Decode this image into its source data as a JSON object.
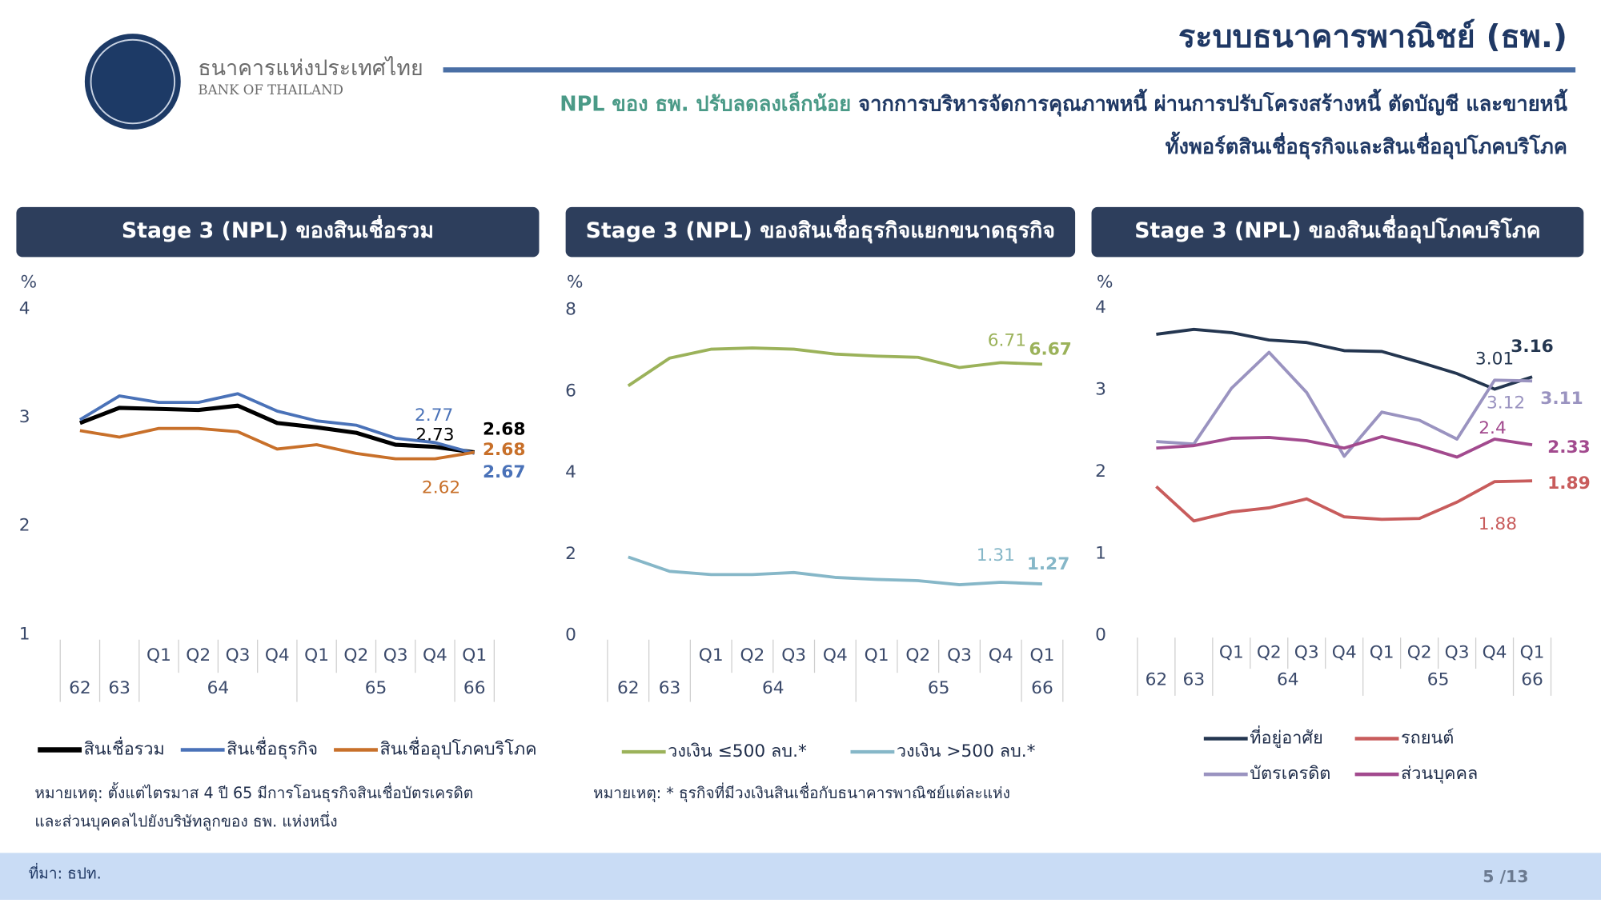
{
  "header": {
    "title": "ระบบธนาคารพาณิชย์ (ธพ.)",
    "subtitle_highlight": "NPL ของ ธพ. ปรับลดลงเล็กน้อย",
    "subtitle_rest": " จากการบริหารจัดการคุณภาพหนี้ ผ่านการปรับโครงสร้างหนี้ ตัดบัญชี และขายหนี้",
    "subtitle_line2": "ทั้งพอร์ตสินเชื่อธุรกิจและสินเชื่ออุปโภคบริโภค"
  },
  "logo": {
    "name_th": "ธนาคารแห่งประเทศไทย",
    "name_en": "BANK OF THAILAND"
  },
  "chart_data": [
    {
      "type": "line",
      "title": "Stage 3 (NPL) ของสินเชื่อรวม",
      "y_unit": "%",
      "categories": [
        null,
        null,
        "Q1",
        "Q2",
        "Q3",
        "Q4",
        "Q1",
        "Q2",
        "Q3",
        "Q4",
        "Q1"
      ],
      "category_groups": [
        {
          "label": "62",
          "count": 1
        },
        {
          "label": "63",
          "count": 1
        },
        {
          "label": "64",
          "count": 4
        },
        {
          "label": "65",
          "count": 4
        },
        {
          "label": "66",
          "count": 1
        }
      ],
      "ylim": [
        1,
        4
      ],
      "yticks": [
        1,
        2,
        3,
        4
      ],
      "series": [
        {
          "name": "สินเชื่อรวม",
          "color": "#000000",
          "values": [
            2.95,
            3.09,
            3.08,
            3.07,
            3.11,
            2.95,
            2.91,
            2.86,
            2.75,
            2.73,
            2.68
          ],
          "labeled_points": [
            9,
            10
          ]
        },
        {
          "name": "สินเชื่อธุรกิจ",
          "color": "#4a72b8",
          "values": [
            2.98,
            3.2,
            3.14,
            3.14,
            3.22,
            3.06,
            2.97,
            2.93,
            2.81,
            2.77,
            2.67
          ],
          "labeled_points": [
            9,
            10
          ]
        },
        {
          "name": "สินเชื่ออุปโภคบริโภค",
          "color": "#c8702a",
          "values": [
            2.88,
            2.82,
            2.9,
            2.9,
            2.87,
            2.71,
            2.75,
            2.67,
            2.62,
            2.62,
            2.68
          ],
          "labeled_points": [
            9,
            10
          ]
        }
      ],
      "notes": [
        "หมายเหตุ: ตั้งแต่ไตรมาส 4 ปี 65 มีการโอนธุรกิจสินเชื่อบัตรเครดิต",
        "และส่วนบุคคลไปยังบริษัทลูกของ ธพ. แห่งหนึ่ง"
      ]
    },
    {
      "type": "line",
      "title": "Stage 3 (NPL) ของสินเชื่อธุรกิจแยกขนาดธุรกิจ",
      "y_unit": "%",
      "categories": [
        null,
        null,
        "Q1",
        "Q2",
        "Q3",
        "Q4",
        "Q1",
        "Q2",
        "Q3",
        "Q4",
        "Q1"
      ],
      "category_groups": [
        {
          "label": "62",
          "count": 1
        },
        {
          "label": "63",
          "count": 1
        },
        {
          "label": "64",
          "count": 4
        },
        {
          "label": "65",
          "count": 4
        },
        {
          "label": "66",
          "count": 1
        }
      ],
      "ylim": [
        0,
        8
      ],
      "yticks": [
        0,
        2,
        4,
        6,
        8
      ],
      "series": [
        {
          "name": "วงเงิน ≤500 ลบ.*",
          "color": "#9bb25a",
          "values": [
            6.14,
            6.82,
            7.04,
            7.07,
            7.04,
            6.92,
            6.87,
            6.84,
            6.59,
            6.71,
            6.67
          ],
          "labeled_points": [
            9,
            10
          ]
        },
        {
          "name": "วงเงิน >500 ลบ.*",
          "color": "#86b7c8",
          "values": [
            1.93,
            1.58,
            1.5,
            1.5,
            1.55,
            1.43,
            1.38,
            1.35,
            1.25,
            1.31,
            1.27
          ],
          "labeled_points": [
            9,
            10
          ]
        }
      ],
      "notes": [
        "หมายเหตุ: * ธุรกิจที่มีวงเงินสินเชื่อกับธนาคารพาณิชย์แต่ละแห่ง"
      ]
    },
    {
      "type": "line",
      "title": "Stage 3 (NPL) ของสินเชื่ออุปโภคบริโภค",
      "y_unit": "%",
      "categories": [
        null,
        null,
        "Q1",
        "Q2",
        "Q3",
        "Q4",
        "Q1",
        "Q2",
        "Q3",
        "Q4",
        "Q1"
      ],
      "category_groups": [
        {
          "label": "62",
          "count": 1
        },
        {
          "label": "63",
          "count": 1
        },
        {
          "label": "64",
          "count": 4
        },
        {
          "label": "65",
          "count": 4
        },
        {
          "label": "66",
          "count": 1
        }
      ],
      "ylim": [
        0,
        4
      ],
      "yticks": [
        0,
        1,
        2,
        3,
        4
      ],
      "series": [
        {
          "name": "ที่อยู่อาศัย",
          "color": "#243650",
          "values": [
            3.68,
            3.74,
            3.7,
            3.61,
            3.58,
            3.48,
            3.47,
            3.34,
            3.2,
            3.01,
            3.16
          ],
          "labeled_points": [
            9,
            10
          ]
        },
        {
          "name": "รถยนต์",
          "color": "#c85c5c",
          "values": [
            1.82,
            1.4,
            1.51,
            1.56,
            1.67,
            1.45,
            1.42,
            1.43,
            1.63,
            1.88,
            1.89
          ],
          "labeled_points": [
            9,
            10
          ]
        },
        {
          "name": "บัตรเครดิต",
          "color": "#9a93c0",
          "values": [
            2.37,
            2.34,
            3.02,
            3.46,
            2.97,
            2.19,
            2.73,
            2.63,
            2.4,
            3.12,
            3.11
          ],
          "labeled_points": [
            9,
            10
          ]
        },
        {
          "name": "ส่วนบุคคล",
          "color": "#a24a8e",
          "values": [
            2.29,
            2.32,
            2.41,
            2.42,
            2.38,
            2.29,
            2.43,
            2.32,
            2.18,
            2.4,
            2.33
          ],
          "labeled_points": [
            9,
            10
          ]
        }
      ]
    }
  ],
  "footer": {
    "source": "ที่มา: ธปท.",
    "page": "5 /13"
  }
}
